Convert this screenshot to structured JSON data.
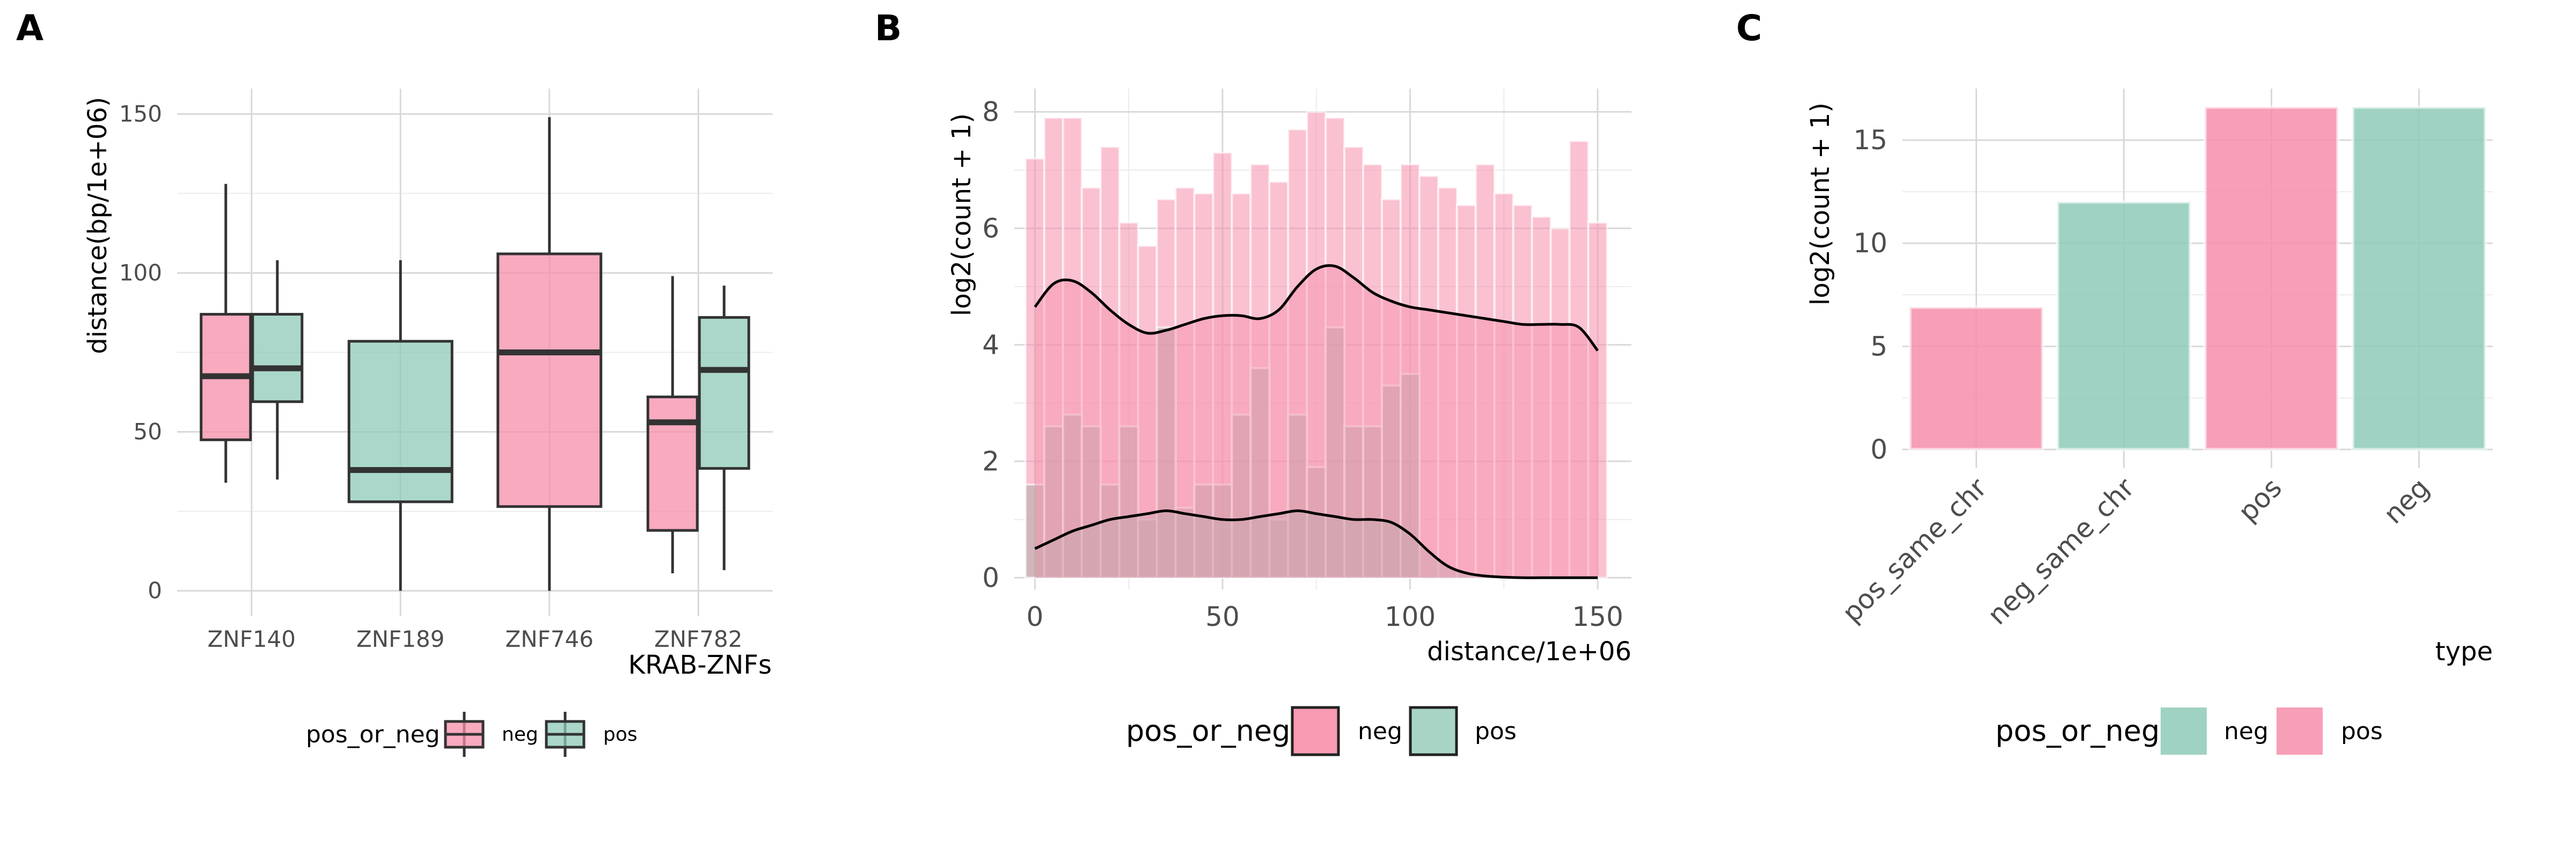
{
  "panel_labels": [
    "A",
    "B",
    "C"
  ],
  "chart_data": [
    {
      "type": "boxplot",
      "panel": "A",
      "xlabel": "KRAB-ZNFs",
      "ylabel": "distance(bp/1e+06)",
      "ylim": [
        -8,
        158
      ],
      "yticks": [
        0,
        50,
        100,
        150
      ],
      "categories": [
        "ZNF140",
        "ZNF189",
        "ZNF746",
        "ZNF782"
      ],
      "grid": true,
      "legend": {
        "title": "pos_or_neg",
        "position": "bottom",
        "entries": [
          "neg",
          "pos"
        ]
      },
      "colors": {
        "neg": "#F68EAA",
        "pos": "#8FCAB9"
      },
      "boxes": [
        {
          "category": "ZNF140",
          "group": "neg",
          "min": 34,
          "q1": 47.5,
          "median": 67.5,
          "q3": 87,
          "max": 128
        },
        {
          "category": "ZNF140",
          "group": "pos",
          "min": 35,
          "q1": 59.5,
          "median": 70,
          "q3": 87,
          "max": 104
        },
        {
          "category": "ZNF189",
          "group": "pos",
          "min": 0,
          "q1": 28,
          "median": 38,
          "q3": 78.5,
          "max": 104
        },
        {
          "category": "ZNF746",
          "group": "neg",
          "min": 0,
          "q1": 26.5,
          "median": 75,
          "q3": 106,
          "max": 149
        },
        {
          "category": "ZNF782",
          "group": "neg",
          "min": 5.5,
          "q1": 19,
          "median": 53,
          "q3": 61,
          "max": 99
        },
        {
          "category": "ZNF782",
          "group": "pos",
          "min": 6.5,
          "q1": 38.5,
          "median": 69.5,
          "q3": 86,
          "max": 96
        }
      ]
    },
    {
      "type": "histogram",
      "panel": "B",
      "xlabel": "distance/1e+06",
      "ylabel": "log2(count + 1)",
      "xlim": [
        -5.5,
        159
      ],
      "ylim": [
        -0.2,
        8.4
      ],
      "xticks": [
        0,
        50,
        100,
        150
      ],
      "yticks": [
        0,
        2,
        4,
        6,
        8
      ],
      "grid": true,
      "legend": {
        "title": "pos_or_neg",
        "position": "bottom",
        "entries": [
          "neg",
          "pos"
        ]
      },
      "colors": {
        "neg": "#F68EAA",
        "pos": "#8FCAB9"
      },
      "bins": [
        0,
        5,
        10,
        15,
        20,
        25,
        30,
        35,
        40,
        45,
        50,
        55,
        60,
        65,
        70,
        75,
        80,
        85,
        90,
        95,
        100,
        105,
        110,
        115,
        120,
        125,
        130,
        135,
        140,
        145,
        150
      ],
      "bin_width": 5,
      "series": [
        {
          "name": "neg",
          "values": [
            7.2,
            7.9,
            7.9,
            6.7,
            7.4,
            6.1,
            5.7,
            6.5,
            6.7,
            6.6,
            7.3,
            6.6,
            7.1,
            6.8,
            7.7,
            8.0,
            7.9,
            7.4,
            7.1,
            6.5,
            7.1,
            6.9,
            6.7,
            6.4,
            7.1,
            6.6,
            6.4,
            6.2,
            6.0,
            7.5,
            6.1
          ]
        },
        {
          "name": "pos",
          "values": [
            1.6,
            2.6,
            2.8,
            2.6,
            1.6,
            2.6,
            1.0,
            4.3,
            1.2,
            1.6,
            1.6,
            2.8,
            3.6,
            1.0,
            2.8,
            1.9,
            4.3,
            2.6,
            2.6,
            3.3,
            3.5,
            0,
            0,
            0,
            0,
            0,
            0,
            0,
            0,
            0,
            0
          ]
        }
      ],
      "density_neg": {
        "x": [
          0,
          5,
          10,
          15,
          20,
          25,
          30,
          35,
          40,
          45,
          50,
          55,
          60,
          65,
          70,
          75,
          80,
          85,
          90,
          95,
          100,
          105,
          110,
          115,
          120,
          125,
          130,
          135,
          140,
          145,
          150
        ],
        "y": [
          4.65,
          5.05,
          5.1,
          4.9,
          4.6,
          4.35,
          4.2,
          4.25,
          4.35,
          4.45,
          4.5,
          4.5,
          4.45,
          4.6,
          5.0,
          5.3,
          5.35,
          5.15,
          4.9,
          4.75,
          4.65,
          4.6,
          4.55,
          4.5,
          4.45,
          4.4,
          4.35,
          4.35,
          4.35,
          4.3,
          3.9
        ]
      },
      "density_pos": {
        "x": [
          0,
          5,
          10,
          15,
          20,
          25,
          30,
          35,
          40,
          45,
          50,
          55,
          60,
          65,
          70,
          75,
          80,
          85,
          90,
          95,
          100,
          105,
          110,
          115,
          120,
          125,
          130,
          135,
          140,
          145,
          150
        ],
        "y": [
          0.5,
          0.65,
          0.8,
          0.9,
          1.0,
          1.05,
          1.1,
          1.15,
          1.1,
          1.05,
          1.0,
          1.0,
          1.05,
          1.1,
          1.15,
          1.1,
          1.05,
          1.0,
          1.0,
          0.95,
          0.75,
          0.45,
          0.2,
          0.08,
          0.03,
          0.01,
          0,
          0,
          0,
          0,
          0
        ]
      }
    },
    {
      "type": "bar",
      "panel": "C",
      "xlabel": "type",
      "ylabel": "log2(count + 1)",
      "ylim": [
        -0.9,
        17.5
      ],
      "yticks": [
        0,
        5,
        10,
        15
      ],
      "categories": [
        "pos_same_chr",
        "neg_same_chr",
        "pos",
        "neg"
      ],
      "values": [
        6.9,
        12.0,
        16.6,
        16.6
      ],
      "bar_colors": [
        "#F68EAA",
        "#8FCAB9",
        "#F68EAA",
        "#8FCAB9"
      ],
      "grid": true,
      "legend": {
        "title": "pos_or_neg",
        "position": "bottom",
        "entries": [
          "neg",
          "pos"
        ]
      },
      "colors": {
        "neg": "#8FCAB9",
        "pos": "#F68EAA"
      }
    }
  ]
}
